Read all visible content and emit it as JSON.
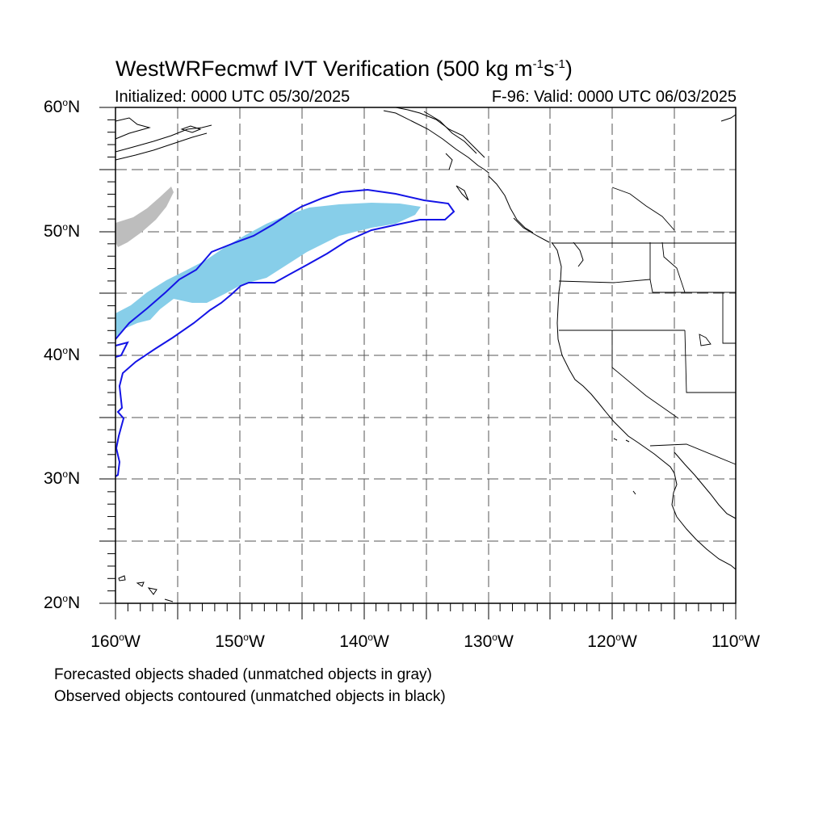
{
  "title_main": "WestWRFecmwf IVT Verification (500 kg m",
  "title_exp1": "-1",
  "title_mid": "s",
  "title_exp2": "-1",
  "title_end": ")",
  "initialized": "Initialized: 0000 UTC 05/30/2025",
  "valid": "F-96: Valid: 0000 UTC 06/03/2025",
  "lat_labels": [
    {
      "num": "60",
      "deg": "o",
      "dir": "N"
    },
    {
      "num": "50",
      "deg": "o",
      "dir": "N"
    },
    {
      "num": "40",
      "deg": "o",
      "dir": "N"
    },
    {
      "num": "30",
      "deg": "o",
      "dir": "N"
    },
    {
      "num": "20",
      "deg": "o",
      "dir": "N"
    }
  ],
  "lon_labels": [
    {
      "num": "160",
      "deg": "o",
      "dir": "W"
    },
    {
      "num": "150",
      "deg": "o",
      "dir": "W"
    },
    {
      "num": "140",
      "deg": "o",
      "dir": "W"
    },
    {
      "num": "130",
      "deg": "o",
      "dir": "W"
    },
    {
      "num": "120",
      "deg": "o",
      "dir": "W"
    },
    {
      "num": "110",
      "deg": "o",
      "dir": "W"
    }
  ],
  "notes": [
    "Forecasted objects shaded (unmatched objects in gray)",
    "Observed objects contoured (unmatched objects in black)"
  ],
  "colors": {
    "forecast_matched": "#87cee9",
    "forecast_unmatched": "#bdbdbd",
    "observed_matched": "#1414e6"
  }
}
